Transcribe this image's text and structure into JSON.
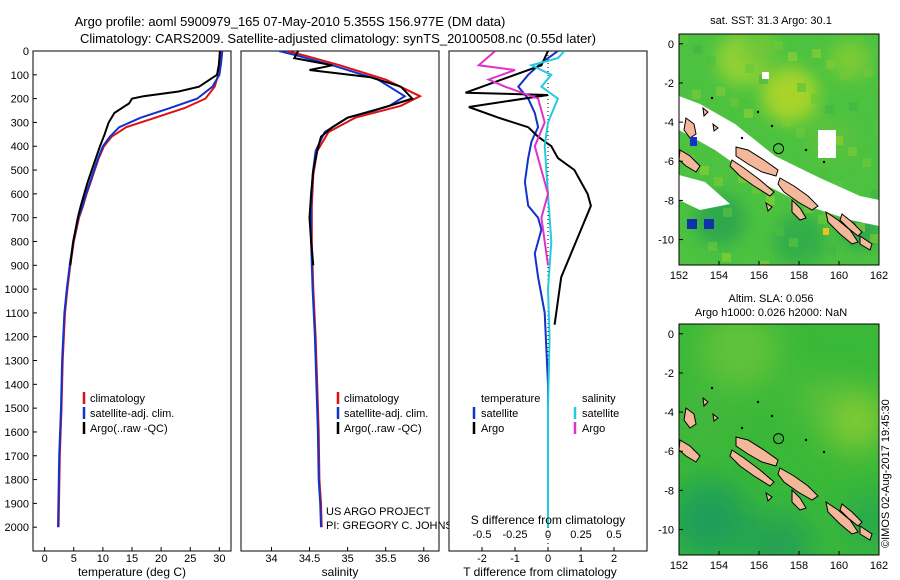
{
  "header": {
    "title_line1": "Argo profile: aoml 5900979_165 07-May-2010 5.355S 156.977E (DM data)",
    "title_line2": "Climatology: CARS2009. Satellite-adjusted climatology: synTS_20100508.nc (0.55d later)"
  },
  "footer": {
    "project": "US ARGO PROJECT",
    "pi": "PI: GREGORY C. JOHNSON",
    "stamp": "©IMOS 02-Aug-2017 19:45:30"
  },
  "colors": {
    "climatology": "#dd1111",
    "satellite": "#1133cc",
    "argo": "#000000",
    "salinity_satellite": "#22ccdd",
    "salinity_argo": "#dd33cc",
    "land": "#f2b899",
    "map_field": "#3ab838"
  },
  "legends": {
    "temperature": [
      "climatology",
      "satellite-adj. clim.",
      "Argo(..raw -QC)"
    ],
    "salinity": [
      "climatology",
      "satellite-adj. clim.",
      "Argo(..raw -QC)"
    ],
    "difference": {
      "t_head": "temperature",
      "s_head": "salinity",
      "t_items": [
        "satellite",
        "Argo"
      ],
      "s_items": [
        "satellite",
        "Argo"
      ]
    }
  },
  "maps": {
    "sst_title": "sat. SST: 31.3 Argo: 30.1",
    "sla_title_1": "Altim. SLA: 0.056",
    "sla_title_2": "Argo h1000: 0.026 h2000: NaN",
    "x_ticks": [
      "152",
      "154",
      "156",
      "158",
      "160",
      "162"
    ],
    "y_ticks": [
      "0",
      "-2",
      "-4",
      "-6",
      "-8",
      "-10"
    ],
    "xlim": [
      152,
      162
    ],
    "ylim": [
      -11.3,
      0.5
    ],
    "profile_location": {
      "lon": 156.977,
      "lat": -5.355
    }
  },
  "chart_data": [
    {
      "type": "line",
      "xlabel": "temperature (deg C)",
      "xlim": [
        -2,
        32
      ],
      "ylim": [
        2100,
        0
      ],
      "x_ticks": [
        0,
        5,
        10,
        15,
        20,
        25,
        30
      ],
      "y_ticks": [
        0,
        100,
        200,
        300,
        400,
        500,
        600,
        700,
        800,
        900,
        1000,
        1100,
        1200,
        1300,
        1400,
        1500,
        1600,
        1700,
        1800,
        1900,
        2000
      ],
      "series": [
        {
          "name": "climatology",
          "color": "#dd1111",
          "x": [
            30.2,
            30.0,
            29.8,
            29.2,
            27.6,
            24.0,
            19.0,
            14.0,
            11.5,
            10.2,
            9.3,
            8.6,
            7.9,
            7.2,
            6.6,
            5.9,
            5.0,
            4.4,
            3.9,
            3.5,
            3.1,
            2.9,
            2.6,
            2.4
          ],
          "y": [
            0,
            50,
            100,
            150,
            200,
            240,
            280,
            320,
            360,
            400,
            450,
            500,
            550,
            600,
            650,
            700,
            800,
            900,
            1000,
            1100,
            1300,
            1500,
            1700,
            2000
          ]
        },
        {
          "name": "satellite-adj. clim.",
          "color": "#1133cc",
          "x": [
            30.5,
            30.3,
            30.0,
            28.8,
            26.2,
            21.5,
            16.5,
            12.8,
            11.2,
            10.0,
            9.2,
            8.5,
            7.8,
            7.1,
            6.5,
            5.8,
            4.9,
            4.3,
            3.8,
            3.4,
            3.0,
            2.8,
            2.5,
            2.3
          ],
          "y": [
            0,
            50,
            100,
            150,
            200,
            240,
            280,
            320,
            360,
            400,
            450,
            500,
            550,
            600,
            650,
            700,
            800,
            900,
            1000,
            1100,
            1300,
            1500,
            1700,
            2000
          ]
        },
        {
          "name": "Argo(..raw -QC)",
          "color": "#000000",
          "x": [
            30.1,
            30.0,
            29.9,
            29.6,
            26.5,
            23.0,
            17.0,
            15.0,
            14.5,
            12.0,
            11.0,
            10.3,
            9.5,
            8.8,
            8.1,
            7.4,
            6.8,
            6.2,
            5.7,
            4.9,
            4.4
          ],
          "y": [
            0,
            30,
            60,
            100,
            150,
            170,
            190,
            200,
            220,
            260,
            300,
            350,
            400,
            450,
            500,
            550,
            600,
            650,
            700,
            800,
            900
          ]
        }
      ]
    },
    {
      "type": "line",
      "xlabel": "salinity",
      "xlim": [
        33.6,
        36.2
      ],
      "ylim": [
        2100,
        0
      ],
      "x_ticks": [
        34,
        34.5,
        35,
        35.5,
        36
      ],
      "series": [
        {
          "name": "climatology",
          "color": "#dd1111",
          "x": [
            34.2,
            34.45,
            34.9,
            35.5,
            35.95,
            35.7,
            35.1,
            34.75,
            34.6,
            34.55,
            34.53,
            34.53,
            34.55,
            34.58,
            34.6,
            34.62,
            34.63,
            34.65,
            34.66
          ],
          "y": [
            0,
            20,
            60,
            120,
            190,
            230,
            280,
            340,
            420,
            520,
            650,
            800,
            1000,
            1200,
            1400,
            1600,
            1800,
            1900,
            2000
          ]
        },
        {
          "name": "satellite-adj. clim.",
          "color": "#1133cc",
          "x": [
            34.1,
            34.35,
            34.8,
            35.4,
            35.75,
            35.55,
            35.0,
            34.7,
            34.58,
            34.54,
            34.52,
            34.52,
            34.54,
            34.57,
            34.59,
            34.61,
            34.62,
            34.64,
            34.65
          ],
          "y": [
            0,
            20,
            60,
            120,
            190,
            230,
            280,
            340,
            420,
            520,
            650,
            800,
            1000,
            1200,
            1400,
            1600,
            1800,
            1900,
            2000
          ]
        },
        {
          "name": "Argo(..raw -QC)",
          "color": "#000000",
          "x": [
            34.35,
            34.3,
            34.8,
            34.5,
            35.3,
            35.7,
            35.85,
            35.35,
            35.0,
            34.8,
            34.65,
            34.6,
            34.55,
            34.52,
            34.5,
            34.52,
            34.55
          ],
          "y": [
            0,
            30,
            60,
            80,
            110,
            150,
            200,
            250,
            280,
            320,
            360,
            420,
            500,
            600,
            700,
            800,
            900
          ]
        }
      ]
    },
    {
      "type": "line",
      "xlabel_top": "S difference from climatology",
      "xlabel_bottom": "T difference from climatology",
      "xlim": [
        -3,
        3
      ],
      "ylim": [
        2100,
        0
      ],
      "t_ticks": [
        -2,
        -1,
        0,
        1,
        2
      ],
      "s_ticks": [
        -0.5,
        -0.25,
        0,
        0.25,
        0.5
      ],
      "s_tick_labels": [
        "-0.5",
        "-0.25",
        "0",
        "0.25",
        "0.5"
      ],
      "series": [
        {
          "name": "temperature satellite",
          "color": "#1133cc",
          "x": [
            0.3,
            0.1,
            -0.2,
            -0.6,
            -0.9,
            -0.6,
            -0.4,
            -0.3,
            -0.5,
            -0.6,
            -0.7,
            -0.6,
            -0.3,
            -0.2,
            -0.4,
            -0.3,
            -0.1,
            0.0,
            0.0
          ],
          "y": [
            0,
            20,
            50,
            100,
            150,
            200,
            260,
            320,
            380,
            450,
            550,
            650,
            700,
            750,
            850,
            950,
            1100,
            1400,
            2000
          ]
        },
        {
          "name": "temperature Argo",
          "color": "#000000",
          "x": [
            0.0,
            -0.2,
            -2.5,
            0.0,
            -2.4,
            -1.5,
            -0.6,
            -0.3,
            0.1,
            0.3,
            0.8,
            1.0,
            1.2,
            1.3,
            1.0,
            0.7,
            0.4,
            0.3,
            0.2
          ],
          "y": [
            0,
            60,
            175,
            185,
            235,
            280,
            320,
            360,
            400,
            450,
            500,
            550,
            600,
            650,
            750,
            850,
            950,
            1050,
            1150
          ]
        },
        {
          "name": "salinity satellite",
          "color": "#22ccdd",
          "x": [
            0.5,
            0.3,
            -0.5,
            0.1,
            -0.2,
            0.3,
            0.0,
            -0.1,
            0.0,
            0.1,
            0.0,
            0.05,
            0.0,
            0.0
          ],
          "y": [
            0,
            30,
            60,
            100,
            150,
            200,
            300,
            400,
            600,
            800,
            1000,
            1200,
            1500,
            2000
          ]
        },
        {
          "name": "salinity Argo",
          "color": "#dd33cc",
          "x": [
            -1.6,
            -2.1,
            -1.0,
            -1.8,
            -1.3,
            -0.3,
            -0.1,
            -0.4,
            -0.2,
            0.0,
            -0.2,
            -0.1,
            0.0
          ],
          "y": [
            0,
            60,
            80,
            120,
            150,
            200,
            300,
            400,
            500,
            600,
            700,
            800,
            900
          ]
        }
      ]
    }
  ]
}
